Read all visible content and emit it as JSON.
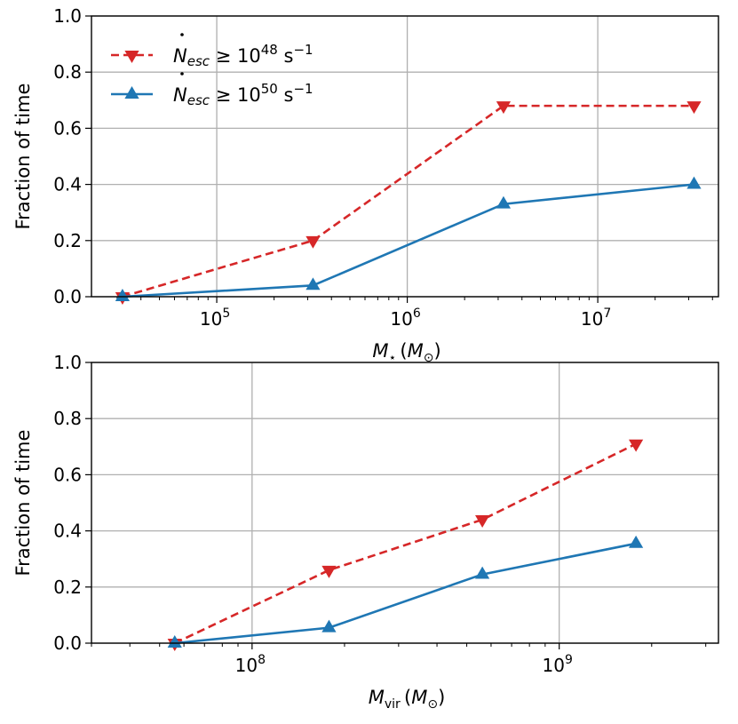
{
  "chart_data": [
    {
      "type": "line",
      "xscale": "log",
      "xlim": [
        22000,
        43000000
      ],
      "ylim": [
        0.0,
        1.0
      ],
      "xticks": [
        {
          "value": 100000,
          "base": "10",
          "exp": "5"
        },
        {
          "value": 1000000,
          "base": "10",
          "exp": "6"
        },
        {
          "value": 10000000,
          "base": "10",
          "exp": "7"
        }
      ],
      "yticks": [
        "0.0",
        "0.2",
        "0.4",
        "0.6",
        "0.8",
        "1.0"
      ],
      "xlabel": {
        "main": "M",
        "sub": "⋆",
        "unit_open": "(",
        "unit_main": "M",
        "unit_sub": "⊙",
        "unit_close": ")"
      },
      "ylabel": "Fraction of time",
      "grid": true,
      "legend": {
        "placement": "upper-left",
        "entries": [
          {
            "symbol": "N",
            "sub": "esc",
            "relation": "≥ 10",
            "exp": "48",
            "unit": "s",
            "unit_exp": "−1"
          },
          {
            "symbol": "N",
            "sub": "esc",
            "relation": "≥ 10",
            "exp": "50",
            "unit": "s",
            "unit_exp": "−1"
          }
        ]
      },
      "series": [
        {
          "name": "N_esc >= 10^48 s^-1",
          "color": "#d62728",
          "style": "dashed",
          "marker": "triangle-down",
          "x": [
            32000,
            320000,
            3200000,
            32000000
          ],
          "y": [
            0.0,
            0.2,
            0.68,
            0.68
          ]
        },
        {
          "name": "N_esc >= 10^50 s^-1",
          "color": "#1f77b4",
          "style": "solid",
          "marker": "triangle-up",
          "x": [
            32000,
            320000,
            3200000,
            32000000
          ],
          "y": [
            0.0,
            0.04,
            0.33,
            0.4
          ]
        }
      ]
    },
    {
      "type": "line",
      "xscale": "log",
      "xlim": [
        30000000,
        3300000000
      ],
      "ylim": [
        0.0,
        1.0
      ],
      "xticks": [
        {
          "value": 100000000,
          "base": "10",
          "exp": "8"
        },
        {
          "value": 1000000000,
          "base": "10",
          "exp": "9"
        }
      ],
      "yticks": [
        "0.0",
        "0.2",
        "0.4",
        "0.6",
        "0.8",
        "1.0"
      ],
      "xlabel": {
        "main": "M",
        "sub": "vir",
        "unit_open": "(",
        "unit_main": "M",
        "unit_sub": "⊙",
        "unit_close": ")"
      },
      "ylabel": "Fraction of time",
      "grid": true,
      "series": [
        {
          "name": "N_esc >= 10^48 s^-1",
          "color": "#d62728",
          "style": "dashed",
          "marker": "triangle-down",
          "x": [
            56000000,
            178000000,
            562000000,
            1778000000
          ],
          "y": [
            0.0,
            0.26,
            0.44,
            0.71
          ]
        },
        {
          "name": "N_esc >= 10^50 s^-1",
          "color": "#1f77b4",
          "style": "solid",
          "marker": "triangle-up",
          "x": [
            56000000,
            178000000,
            562000000,
            1778000000
          ],
          "y": [
            0.0,
            0.055,
            0.245,
            0.355
          ]
        }
      ]
    }
  ]
}
